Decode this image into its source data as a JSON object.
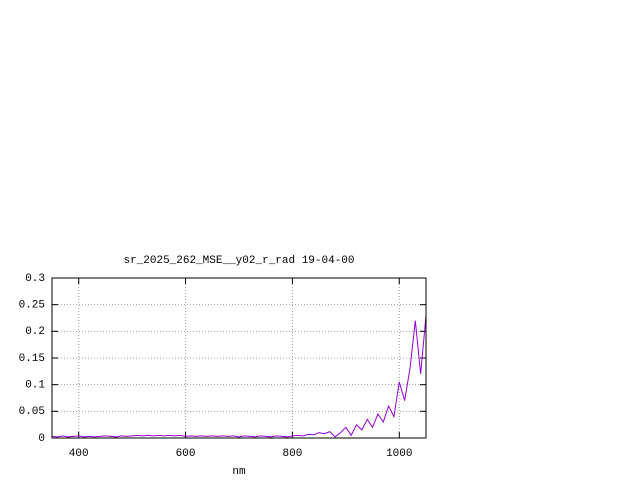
{
  "chart_data": {
    "type": "line",
    "title": "sr_2025_262_MSE__y02_r_rad 19-04-00",
    "x_label": "nm",
    "x": [
      350,
      360,
      370,
      380,
      390,
      400,
      410,
      420,
      430,
      440,
      450,
      460,
      470,
      480,
      490,
      500,
      510,
      520,
      530,
      540,
      550,
      560,
      570,
      580,
      590,
      600,
      610,
      620,
      630,
      640,
      650,
      660,
      670,
      680,
      690,
      700,
      710,
      720,
      730,
      740,
      750,
      760,
      770,
      780,
      790,
      800,
      810,
      820,
      830,
      840,
      850,
      860,
      870,
      880,
      890,
      900,
      910,
      920,
      930,
      940,
      950,
      960,
      970,
      980,
      990,
      1000,
      1010,
      1020,
      1030,
      1040,
      1050
    ],
    "series": [
      {
        "color": "#9400d3",
        "values": [
          0.003,
          0.002,
          0.004,
          0.002,
          0.003,
          0.004,
          0.002,
          0.003,
          0.002,
          0.003,
          0.004,
          0.003,
          0.002,
          0.004,
          0.003,
          0.004,
          0.005,
          0.004,
          0.005,
          0.004,
          0.005,
          0.004,
          0.005,
          0.004,
          0.005,
          0.003,
          0.004,
          0.003,
          0.004,
          0.003,
          0.004,
          0.003,
          0.004,
          0.003,
          0.004,
          0.002,
          0.004,
          0.003,
          0.002,
          0.004,
          0.003,
          0.002,
          0.004,
          0.003,
          0.002,
          0.004,
          0.005,
          0.004,
          0.007,
          0.006,
          0.01,
          0.008,
          0.012,
          0.002,
          0.01,
          0.02,
          0.005,
          0.025,
          0.015,
          0.035,
          0.02,
          0.045,
          0.03,
          0.06,
          0.04,
          0.105,
          0.07,
          0.13,
          0.22,
          0.12,
          0.23
        ]
      }
    ],
    "xlim": [
      350,
      1050
    ],
    "xticks": [
      400,
      600,
      800,
      1000
    ],
    "ylim": [
      0,
      0.3
    ],
    "yticks": [
      0,
      0.05,
      0.1,
      0.15,
      0.2,
      0.25,
      0.3
    ],
    "grid": true
  }
}
